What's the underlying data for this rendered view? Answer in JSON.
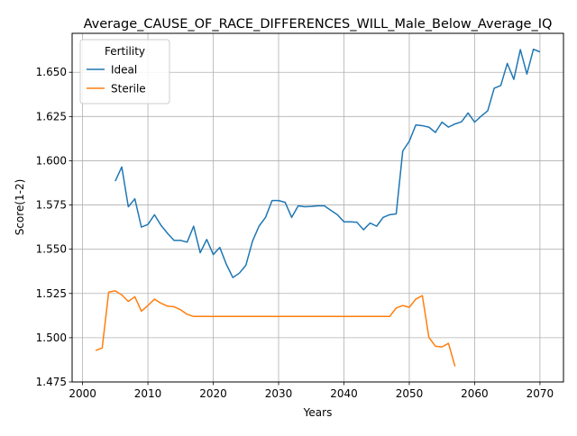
{
  "chart_data": {
    "type": "line",
    "title": "Average_CAUSE_OF_RACE_DIFFERENCES_WILL_Male_Below_Average_IQ",
    "xlabel": "Years",
    "ylabel": "Score(1-2)",
    "xlim": [
      1998.4,
      2073.6
    ],
    "ylim": [
      1.475,
      1.672
    ],
    "xticks": [
      2000,
      2010,
      2020,
      2030,
      2040,
      2050,
      2060,
      2070
    ],
    "xtick_labels": [
      "2000",
      "2010",
      "2020",
      "2030",
      "2040",
      "2050",
      "2060",
      "2070"
    ],
    "yticks": [
      1.475,
      1.5,
      1.525,
      1.55,
      1.575,
      1.6,
      1.625,
      1.65
    ],
    "ytick_labels": [
      "1.475",
      "1.500",
      "1.525",
      "1.550",
      "1.575",
      "1.600",
      "1.625",
      "1.650"
    ],
    "grid": true,
    "legend": {
      "title": "Fertility",
      "placement": "upper left"
    },
    "series": [
      {
        "name": "Ideal",
        "color": "#1f77b4",
        "x": [
          2005,
          2006,
          2007,
          2008,
          2009,
          2010,
          2011,
          2012,
          2013,
          2014,
          2015,
          2016,
          2017,
          2018,
          2019,
          2020,
          2021,
          2022,
          2023,
          2024,
          2025,
          2026,
          2027,
          2028,
          2029,
          2030,
          2031,
          2032,
          2033,
          2034,
          2035,
          2036,
          2037,
          2038,
          2039,
          2040,
          2041,
          2042,
          2043,
          2044,
          2045,
          2046,
          2047,
          2048,
          2049,
          2050,
          2051,
          2052,
          2053,
          2054,
          2055,
          2056,
          2057,
          2058,
          2059,
          2060,
          2061,
          2062,
          2063,
          2064,
          2065,
          2066,
          2067,
          2068,
          2069,
          2070
        ],
        "y": [
          1.5885,
          1.5965,
          1.574,
          1.5785,
          1.5625,
          1.564,
          1.5695,
          1.5635,
          1.559,
          1.555,
          1.555,
          1.554,
          1.563,
          1.548,
          1.5555,
          1.547,
          1.551,
          1.5415,
          1.534,
          1.5365,
          1.541,
          1.5545,
          1.563,
          1.568,
          1.5775,
          1.5775,
          1.5765,
          1.568,
          1.5745,
          1.574,
          1.5742,
          1.5745,
          1.5745,
          1.572,
          1.5695,
          1.5655,
          1.5655,
          1.5652,
          1.561,
          1.5648,
          1.563,
          1.568,
          1.5695,
          1.57,
          1.6055,
          1.611,
          1.6202,
          1.6198,
          1.619,
          1.616,
          1.6218,
          1.619,
          1.6208,
          1.622,
          1.627,
          1.6218,
          1.6252,
          1.6282,
          1.641,
          1.6425,
          1.655,
          1.646,
          1.6628,
          1.649,
          1.663,
          1.6615
        ]
      },
      {
        "name": "Sterile",
        "color": "#ff7f0e",
        "x": [
          2002,
          2003,
          2004,
          2005,
          2006,
          2007,
          2008,
          2009,
          2010,
          2011,
          2012,
          2013,
          2014,
          2015,
          2016,
          2017,
          2018,
          2019,
          2020,
          2021,
          2022,
          2023,
          2024,
          2025,
          2026,
          2027,
          2028,
          2029,
          2030,
          2031,
          2032,
          2033,
          2034,
          2035,
          2036,
          2037,
          2038,
          2039,
          2040,
          2041,
          2042,
          2043,
          2044,
          2045,
          2046,
          2047,
          2048,
          2049,
          2050,
          2051,
          2052,
          2053,
          2054,
          2055,
          2056,
          2057
        ],
        "y": [
          1.4928,
          1.4942,
          1.5258,
          1.5265,
          1.5242,
          1.5205,
          1.5232,
          1.515,
          1.5182,
          1.5218,
          1.5195,
          1.5178,
          1.5175,
          1.5158,
          1.5132,
          1.512,
          1.512,
          1.512,
          1.512,
          1.512,
          1.512,
          1.512,
          1.512,
          1.512,
          1.512,
          1.512,
          1.512,
          1.512,
          1.512,
          1.512,
          1.512,
          1.512,
          1.512,
          1.512,
          1.512,
          1.512,
          1.512,
          1.512,
          1.512,
          1.512,
          1.512,
          1.512,
          1.512,
          1.512,
          1.512,
          1.512,
          1.5168,
          1.5182,
          1.5172,
          1.5218,
          1.5238,
          1.5002,
          1.4952,
          1.4948,
          1.4968,
          1.4838
        ]
      }
    ]
  }
}
